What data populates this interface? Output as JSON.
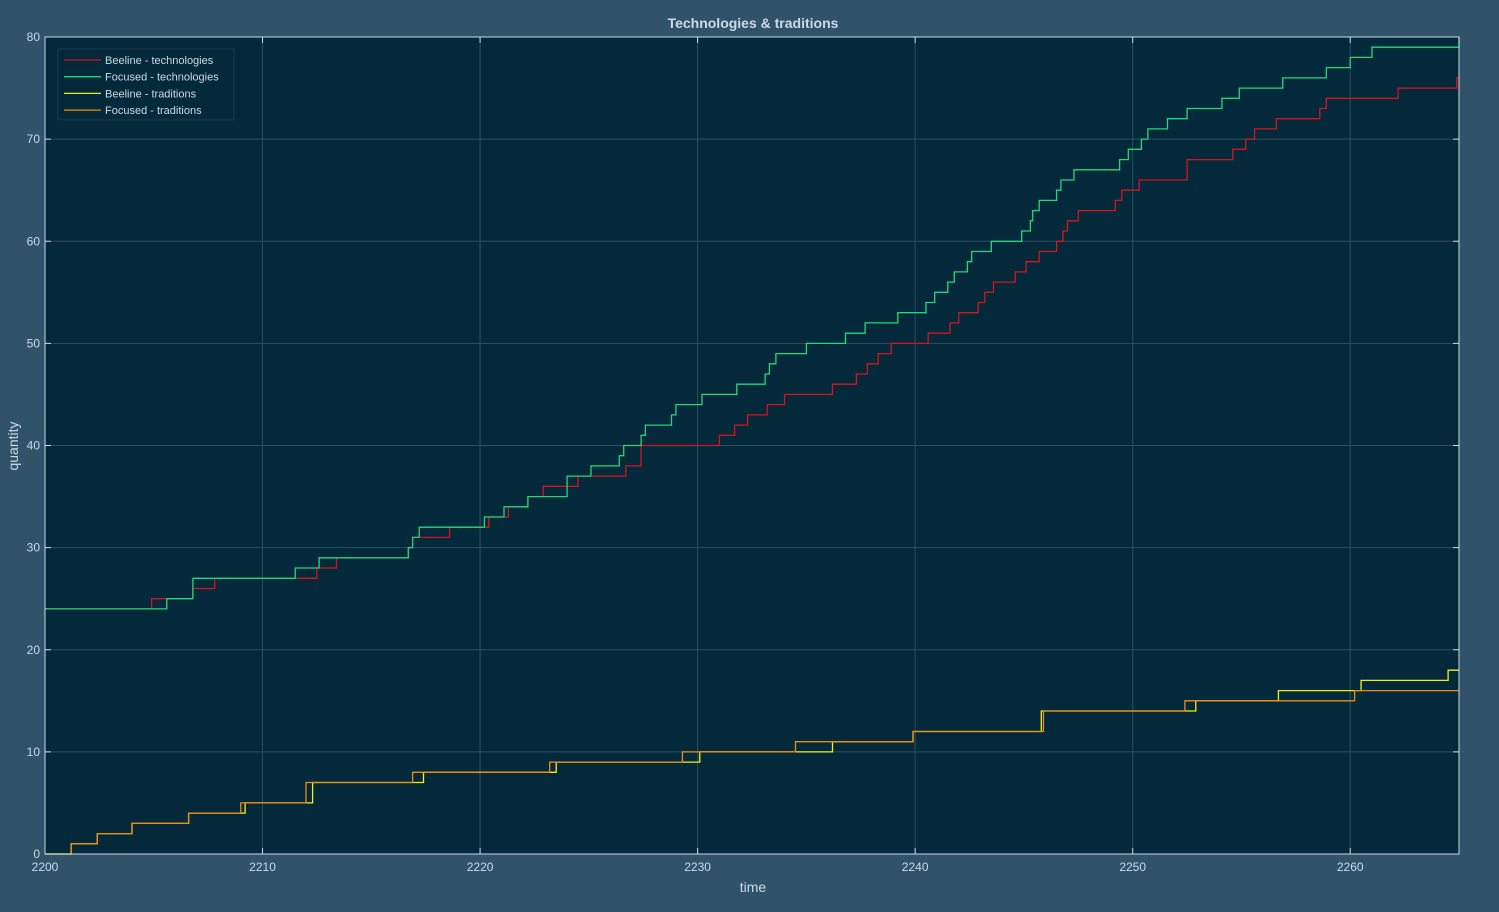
{
  "chart_data": {
    "type": "line",
    "step": true,
    "title": "Technologies & traditions",
    "xlabel": "time",
    "ylabel": "quantity",
    "xlim": [
      2200,
      2265
    ],
    "ylim": [
      0,
      80
    ],
    "xticks": [
      2200,
      2210,
      2220,
      2230,
      2240,
      2250,
      2260
    ],
    "yticks": [
      0,
      10,
      20,
      30,
      40,
      50,
      60,
      70,
      80
    ],
    "grid": true,
    "legend_position": "top-left",
    "colors": {
      "figure_bg": "#31536a",
      "axes_bg": "#04293a",
      "axis": "#c9dbe6",
      "grid": "#2d4e60"
    },
    "series": [
      {
        "name": "Beeline - technologies",
        "color": "#d2161e",
        "points": [
          [
            2200,
            24
          ],
          [
            2204.9,
            25
          ],
          [
            2205.6,
            25
          ],
          [
            2206.8,
            26
          ],
          [
            2207.8,
            27
          ],
          [
            2211.6,
            27
          ],
          [
            2212.5,
            28
          ],
          [
            2213.4,
            29
          ],
          [
            2216.7,
            30
          ],
          [
            2216.9,
            31
          ],
          [
            2218.6,
            32
          ],
          [
            2220.4,
            33
          ],
          [
            2221.3,
            34
          ],
          [
            2222.2,
            35
          ],
          [
            2222.9,
            36
          ],
          [
            2224.5,
            37
          ],
          [
            2225.6,
            37
          ],
          [
            2226.7,
            38
          ],
          [
            2227.4,
            40
          ],
          [
            2231.0,
            41
          ],
          [
            2231.7,
            42
          ],
          [
            2232.3,
            43
          ],
          [
            2233.2,
            44
          ],
          [
            2234.0,
            45
          ],
          [
            2236.2,
            46
          ],
          [
            2237.3,
            47
          ],
          [
            2237.8,
            48
          ],
          [
            2238.3,
            49
          ],
          [
            2238.9,
            50
          ],
          [
            2240.6,
            51
          ],
          [
            2241.6,
            52
          ],
          [
            2242.0,
            53
          ],
          [
            2242.9,
            54
          ],
          [
            2243.2,
            55
          ],
          [
            2243.6,
            56
          ],
          [
            2244.6,
            57
          ],
          [
            2245.1,
            58
          ],
          [
            2245.7,
            59
          ],
          [
            2246.5,
            60
          ],
          [
            2246.8,
            61
          ],
          [
            2247.0,
            62
          ],
          [
            2247.5,
            63
          ],
          [
            2249.2,
            64
          ],
          [
            2249.5,
            65
          ],
          [
            2250.3,
            66
          ],
          [
            2252.5,
            68
          ],
          [
            2254.6,
            69
          ],
          [
            2255.2,
            70
          ],
          [
            2255.6,
            71
          ],
          [
            2256.6,
            72
          ],
          [
            2258.6,
            73
          ],
          [
            2258.9,
            74
          ],
          [
            2261.3,
            74
          ],
          [
            2262.2,
            75
          ],
          [
            2264.9,
            76
          ],
          [
            2265,
            76
          ]
        ]
      },
      {
        "name": "Focused - technologies",
        "color": "#22d87d",
        "points": [
          [
            2200,
            24
          ],
          [
            2205.6,
            25
          ],
          [
            2206.8,
            27
          ],
          [
            2211.5,
            28
          ],
          [
            2212.6,
            29
          ],
          [
            2216.7,
            30
          ],
          [
            2216.9,
            31
          ],
          [
            2217.2,
            32
          ],
          [
            2220.2,
            33
          ],
          [
            2221.1,
            34
          ],
          [
            2222.2,
            35
          ],
          [
            2224.0,
            37
          ],
          [
            2225.1,
            38
          ],
          [
            2226.4,
            39
          ],
          [
            2226.6,
            40
          ],
          [
            2227.4,
            41
          ],
          [
            2227.6,
            42
          ],
          [
            2228.8,
            43
          ],
          [
            2229.0,
            44
          ],
          [
            2230.2,
            45
          ],
          [
            2231.8,
            46
          ],
          [
            2233.1,
            47
          ],
          [
            2233.3,
            48
          ],
          [
            2233.6,
            49
          ],
          [
            2235.0,
            50
          ],
          [
            2236.8,
            51
          ],
          [
            2237.7,
            52
          ],
          [
            2239.2,
            53
          ],
          [
            2240.5,
            54
          ],
          [
            2240.9,
            55
          ],
          [
            2241.5,
            56
          ],
          [
            2241.8,
            57
          ],
          [
            2242.4,
            58
          ],
          [
            2242.6,
            59
          ],
          [
            2243.5,
            60
          ],
          [
            2244.9,
            61
          ],
          [
            2245.3,
            62
          ],
          [
            2245.4,
            63
          ],
          [
            2245.7,
            64
          ],
          [
            2246.5,
            65
          ],
          [
            2246.7,
            66
          ],
          [
            2247.3,
            67
          ],
          [
            2249.4,
            68
          ],
          [
            2249.8,
            69
          ],
          [
            2250.4,
            70
          ],
          [
            2250.7,
            71
          ],
          [
            2251.6,
            72
          ],
          [
            2252.5,
            73
          ],
          [
            2254.1,
            74
          ],
          [
            2254.9,
            75
          ],
          [
            2256.9,
            76
          ],
          [
            2258.9,
            77
          ],
          [
            2260.0,
            78
          ],
          [
            2261.0,
            79
          ],
          [
            2265,
            80
          ]
        ]
      },
      {
        "name": "Beeline - traditions",
        "color": "#f1f11a",
        "points": [
          [
            2200,
            0
          ],
          [
            2201.2,
            1
          ],
          [
            2202.4,
            2
          ],
          [
            2204.0,
            3
          ],
          [
            2206.6,
            4
          ],
          [
            2209.2,
            5
          ],
          [
            2212.3,
            7
          ],
          [
            2217.4,
            8
          ],
          [
            2223.5,
            9
          ],
          [
            2230.1,
            10
          ],
          [
            2236.2,
            11
          ],
          [
            2239.9,
            12
          ],
          [
            2243.2,
            12
          ],
          [
            2245.8,
            14
          ],
          [
            2249.5,
            14
          ],
          [
            2252.9,
            15
          ],
          [
            2256.7,
            16
          ],
          [
            2260.5,
            17
          ],
          [
            2264.5,
            18
          ],
          [
            2265,
            18
          ]
        ]
      },
      {
        "name": "Focused - traditions",
        "color": "#ec8e16",
        "points": [
          [
            2200,
            0
          ],
          [
            2201.2,
            1
          ],
          [
            2202.4,
            2
          ],
          [
            2204.0,
            3
          ],
          [
            2206.6,
            4
          ],
          [
            2209.0,
            5
          ],
          [
            2212.0,
            7
          ],
          [
            2216.9,
            8
          ],
          [
            2223.2,
            9
          ],
          [
            2229.3,
            10
          ],
          [
            2234.5,
            11
          ],
          [
            2239.9,
            12
          ],
          [
            2245.8,
            12
          ],
          [
            2245.9,
            14
          ],
          [
            2252.4,
            15
          ],
          [
            2260.2,
            16
          ],
          [
            2265,
            16
          ]
        ]
      }
    ]
  }
}
